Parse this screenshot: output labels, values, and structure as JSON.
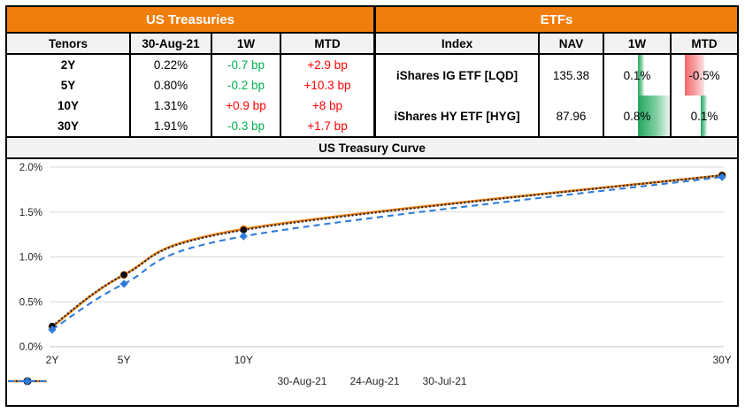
{
  "colors": {
    "accent_orange": "#F07E0C",
    "positive_green_text": "#00B050",
    "negative_red_text": "#FF0000",
    "databar_green": "#23A55F",
    "databar_red": "#F2686C",
    "gridline": "#D9D9D9"
  },
  "treasuries": {
    "title": "US Treasuries",
    "columns": [
      "Tenors",
      "30-Aug-21",
      "1W",
      "MTD"
    ],
    "rows": [
      {
        "tenor": "2Y",
        "rate": "0.22%",
        "w1": "-0.7 bp",
        "w1_color": "#00B050",
        "mtd": "+2.9 bp",
        "mtd_color": "#FF0000"
      },
      {
        "tenor": "5Y",
        "rate": "0.80%",
        "w1": "-0.2 bp",
        "w1_color": "#00B050",
        "mtd": "+10.3 bp",
        "mtd_color": "#FF0000"
      },
      {
        "tenor": "10Y",
        "rate": "1.31%",
        "w1": "+0.9 bp",
        "w1_color": "#FF0000",
        "mtd": "+8 bp",
        "mtd_color": "#FF0000"
      },
      {
        "tenor": "30Y",
        "rate": "1.91%",
        "w1": "-0.3 bp",
        "w1_color": "#00B050",
        "mtd": "+1.7 bp",
        "mtd_color": "#FF0000"
      }
    ]
  },
  "etfs": {
    "title": "ETFs",
    "columns": [
      "Index",
      "NAV",
      "1W",
      "MTD"
    ],
    "rows": [
      {
        "index": "iShares IG ETF [LQD]",
        "nav": "135.38",
        "w1": "0.1%",
        "w1_value": 0.1,
        "mtd": "-0.5%",
        "mtd_value": -0.5
      },
      {
        "index": "iShares HY ETF [HYG]",
        "nav": "87.96",
        "w1": "0.8%",
        "w1_value": 0.8,
        "mtd": "0.1%",
        "mtd_value": 0.1
      }
    ]
  },
  "chart_data": {
    "type": "line",
    "title": "US Treasury Curve",
    "categories": [
      "2Y",
      "5Y",
      "10Y",
      "30Y"
    ],
    "x_years": [
      2,
      5,
      10,
      30
    ],
    "series": [
      {
        "name": "30-Aug-21",
        "values": [
          0.22,
          0.8,
          1.31,
          1.91
        ],
        "color": "#F0830E",
        "style": "solid",
        "marker": "circle"
      },
      {
        "name": "24-Aug-21",
        "values": [
          0.23,
          0.8,
          1.3,
          1.91
        ],
        "color": "#1C2340",
        "style": "dotted",
        "marker": "circle"
      },
      {
        "name": "30-Jul-21",
        "values": [
          0.19,
          0.7,
          1.23,
          1.89
        ],
        "color": "#2E7CD9",
        "style": "dashed",
        "marker": "diamond"
      }
    ],
    "ylim": [
      0,
      2.0
    ],
    "ytick_step": 0.5,
    "ytick_labels": [
      "0.0%",
      "0.5%",
      "1.0%",
      "1.5%",
      "2.0%"
    ],
    "grid": true,
    "legend_position": "bottom"
  }
}
